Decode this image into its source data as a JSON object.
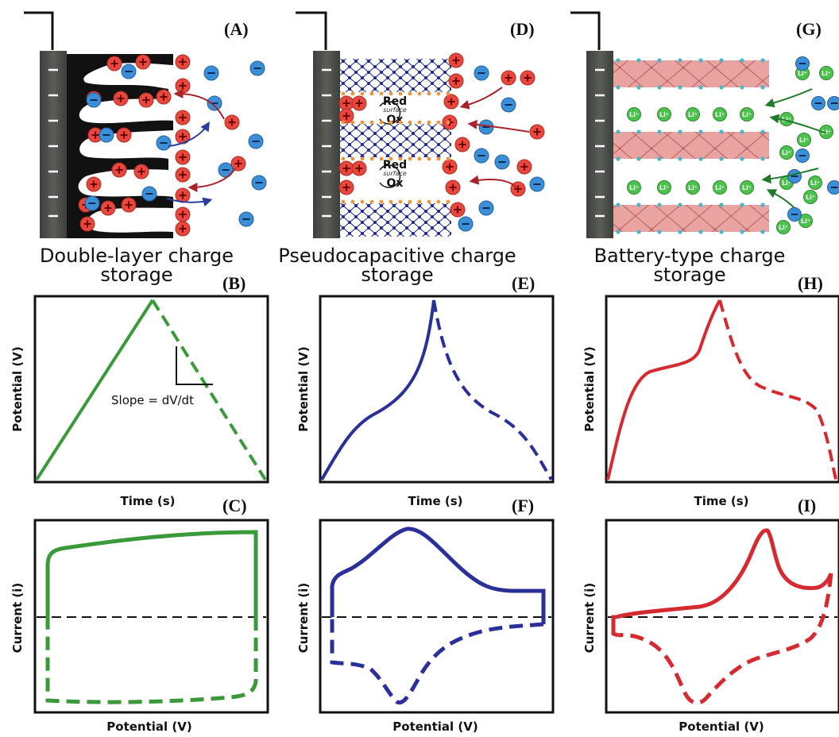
{
  "panels": {
    "A": {
      "label": "(A)"
    },
    "B": {
      "label": "(B)",
      "xlabel": "Time (s)",
      "ylabel": "Potential (V)",
      "annotation": "Slope = dV/dt"
    },
    "C": {
      "label": "(C)",
      "xlabel": "Potential (V)",
      "ylabel": "Current (i)"
    },
    "D": {
      "label": "(D)",
      "redox": "Red",
      "surface": "surface",
      "ox": "Ox"
    },
    "E": {
      "label": "(E)",
      "xlabel": "Time (s)",
      "ylabel": "Potential (V)"
    },
    "F": {
      "label": "(F)",
      "xlabel": "Potential (V)",
      "ylabel": "Current (i)"
    },
    "G": {
      "label": "(G)",
      "ion": "Li⁺"
    },
    "H": {
      "label": "(H)",
      "xlabel": "Time (s)",
      "ylabel": "Potential (V)"
    },
    "I": {
      "label": "(I)",
      "xlabel": "Potential (V)",
      "ylabel": "Current (i)"
    }
  },
  "titles": {
    "double_layer": [
      "Double-layer charge",
      "storage"
    ],
    "pseudo": [
      "Pseudocapacitive charge",
      "storage"
    ],
    "battery": [
      "Battery-type charge",
      "storage"
    ]
  },
  "colors": {
    "double_layer": "#3a9a3a",
    "pseudo": "#2b2f9a",
    "battery": "#d42a30",
    "cation": "#e8473d",
    "anion": "#3a8fd6",
    "li_ion": "#4bc24b",
    "electrode": "#4a4d48"
  }
}
